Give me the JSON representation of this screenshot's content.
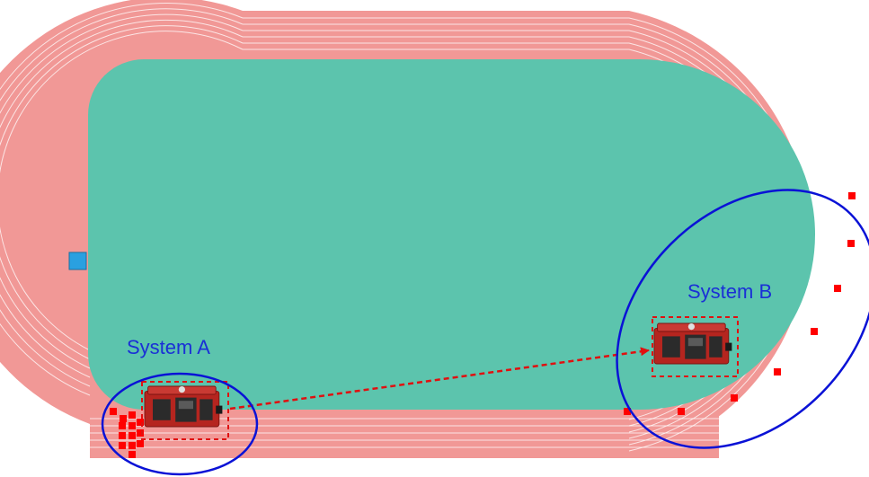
{
  "labels": {
    "system_a": "System A",
    "system_b": "System B"
  },
  "colors": {
    "track": "#f19896",
    "field": "#5cc4ad",
    "lane_line": "#ffffff",
    "system_circle": "#0a12d6",
    "label_text": "#1a2fd6",
    "marker": "#ff0000",
    "arrow": "#e01010",
    "device_body": "#b5251f",
    "device_panel": "#2b2b2b",
    "infield_marker": "#2aa0e0"
  },
  "icons": {
    "device": "timing-device-icon",
    "marker": "red-square-marker",
    "arrow": "dashed-arrow"
  },
  "systems": [
    {
      "id": "system_a",
      "marker_count": 13
    },
    {
      "id": "system_b",
      "marker_count": 9
    }
  ]
}
